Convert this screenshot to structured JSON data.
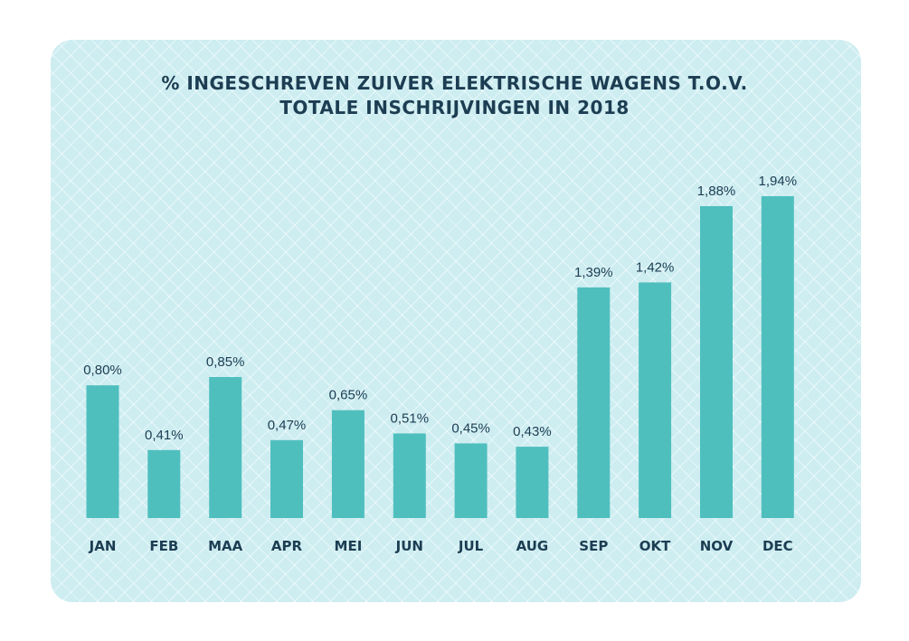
{
  "chart_data": {
    "type": "bar",
    "title_line1": "% INGESCHREVEN ZUIVER ELEKTRISCHE WAGENS T.O.V.",
    "title_line2": "TOTALE INSCHRIJVINGEN IN 2018",
    "categories": [
      "JAN",
      "FEB",
      "MAA",
      "APR",
      "MEI",
      "JUN",
      "JUL",
      "AUG",
      "SEP",
      "OKT",
      "NOV",
      "DEC"
    ],
    "values": [
      0.8,
      0.41,
      0.85,
      0.47,
      0.65,
      0.51,
      0.45,
      0.43,
      1.39,
      1.42,
      1.88,
      1.94
    ],
    "value_labels": [
      "0,80%",
      "0,41%",
      "0,85%",
      "0,47%",
      "0,65%",
      "0,51%",
      "0,45%",
      "0,43%",
      "1,39%",
      "1,42%",
      "1,88%",
      "1,94%"
    ],
    "ylim": [
      0,
      1.94
    ],
    "grid": false,
    "bar_color": "#4fbfbe",
    "text_color": "#1c3d52",
    "background_color": "#cdedf1"
  }
}
